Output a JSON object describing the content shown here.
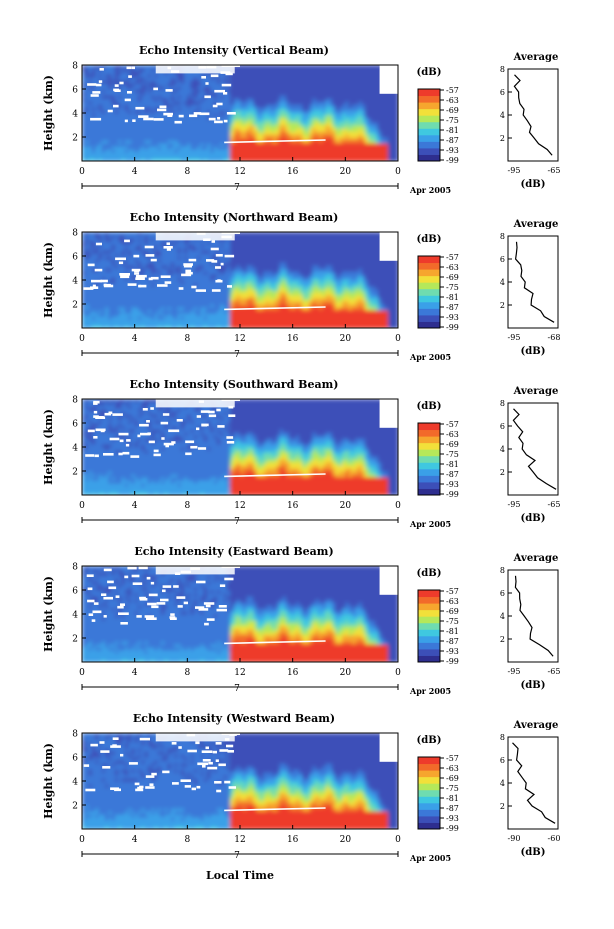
{
  "chart_data": {
    "type": "heatmap",
    "panels": [
      {
        "title": "Echo Intensity (Vertical Beam)",
        "ylabel": "Height (km)",
        "ylim": [
          0,
          8
        ],
        "yticks": [
          2,
          4,
          6,
          8
        ],
        "xlim": [
          0,
          24
        ],
        "xticks": [
          "0",
          "4",
          "8",
          "12",
          "16",
          "20",
          "0"
        ],
        "date_label": "7",
        "date_suffix": "Apr 2005",
        "colorbar": {
          "unit": "(dB)",
          "ticks": [
            "-57",
            "-63",
            "-69",
            "-75",
            "-81",
            "-87",
            "-93",
            "-99"
          ]
        },
        "average": {
          "title": "Average",
          "xlabel": "(dB)",
          "xtick_labels": [
            "-95",
            "-65"
          ],
          "xlim": [
            -95,
            -65
          ],
          "yticks": [
            2,
            4,
            6,
            8
          ]
        }
      },
      {
        "title": "Echo Intensity (Northward Beam)",
        "ylabel": "Height (km)",
        "ylim": [
          0,
          8
        ],
        "yticks": [
          2,
          4,
          6,
          8
        ],
        "xlim": [
          0,
          24
        ],
        "xticks": [
          "0",
          "4",
          "8",
          "12",
          "16",
          "20",
          "0"
        ],
        "date_label": "7",
        "date_suffix": "Apr 2005",
        "colorbar": {
          "unit": "(dB)",
          "ticks": [
            "-57",
            "-63",
            "-69",
            "-75",
            "-81",
            "-87",
            "-93",
            "-99"
          ]
        },
        "average": {
          "title": "Average",
          "xlabel": "(dB)",
          "xtick_labels": [
            "-95",
            "-68"
          ],
          "xlim": [
            -95,
            -68
          ],
          "yticks": [
            2,
            4,
            6,
            8
          ]
        }
      },
      {
        "title": "Echo Intensity (Southward Beam)",
        "ylabel": "Height (km)",
        "ylim": [
          0,
          8
        ],
        "yticks": [
          2,
          4,
          6,
          8
        ],
        "xlim": [
          0,
          24
        ],
        "xticks": [
          "0",
          "4",
          "8",
          "12",
          "16",
          "20",
          "0"
        ],
        "date_label": "7",
        "date_suffix": "Apr 2005",
        "colorbar": {
          "unit": "(dB)",
          "ticks": [
            "-57",
            "-63",
            "-69",
            "-75",
            "-81",
            "-87",
            "-93",
            "-99"
          ]
        },
        "average": {
          "title": "Average",
          "xlabel": "(dB)",
          "xtick_labels": [
            "-95",
            "-65"
          ],
          "xlim": [
            -95,
            -65
          ],
          "yticks": [
            2,
            4,
            6,
            8
          ]
        }
      },
      {
        "title": "Echo Intensity (Eastward Beam)",
        "ylabel": "Height (km)",
        "ylim": [
          0,
          8
        ],
        "yticks": [
          2,
          4,
          6,
          8
        ],
        "xlim": [
          0,
          24
        ],
        "xticks": [
          "0",
          "4",
          "8",
          "12",
          "16",
          "20",
          "0"
        ],
        "date_label": "7",
        "date_suffix": "Apr 2005",
        "colorbar": {
          "unit": "(dB)",
          "ticks": [
            "-57",
            "-63",
            "-69",
            "-75",
            "-81",
            "-87",
            "-93",
            "-99"
          ]
        },
        "average": {
          "title": "Average",
          "xlabel": "(dB)",
          "xtick_labels": [
            "-95",
            "-65"
          ],
          "xlim": [
            -95,
            -65
          ],
          "yticks": [
            2,
            4,
            6,
            8
          ]
        }
      },
      {
        "title": "Echo Intensity (Westward Beam)",
        "ylabel": "Height (km)",
        "ylim": [
          0,
          8
        ],
        "yticks": [
          2,
          4,
          6,
          8
        ],
        "xlim": [
          0,
          24
        ],
        "xticks": [
          "0",
          "4",
          "8",
          "12",
          "16",
          "20",
          "0"
        ],
        "date_label": "7",
        "date_suffix": "Apr 2005",
        "colorbar": {
          "unit": "(dB)",
          "ticks": [
            "-57",
            "-63",
            "-69",
            "-75",
            "-81",
            "-87",
            "-93",
            "-99"
          ]
        },
        "average": {
          "title": "Average",
          "xlabel": "(dB)",
          "xtick_labels": [
            "-90",
            "-60"
          ],
          "xlim": [
            -90,
            -60
          ],
          "yticks": [
            2,
            4,
            6,
            8
          ]
        }
      }
    ],
    "xlabel": "Local Time",
    "colormap": [
      "#2e2e8f",
      "#3c4fb8",
      "#3b78d8",
      "#3aa0e8",
      "#3fc8e0",
      "#6fdcb0",
      "#b5e85a",
      "#f2e03a",
      "#f6a62e",
      "#f26a2a",
      "#ee3b2b"
    ],
    "average_profile_shape": {
      "heights_km": [
        0.5,
        1,
        1.5,
        2,
        2.5,
        3,
        3.5,
        4,
        4.5,
        5,
        5.5,
        6,
        6.5,
        7,
        7.5
      ],
      "relative_position": [
        0.98,
        0.8,
        0.65,
        0.48,
        0.42,
        0.5,
        0.35,
        0.3,
        0.25,
        0.2,
        0.22,
        0.15,
        0.1,
        0.16,
        0.08
      ]
    }
  }
}
